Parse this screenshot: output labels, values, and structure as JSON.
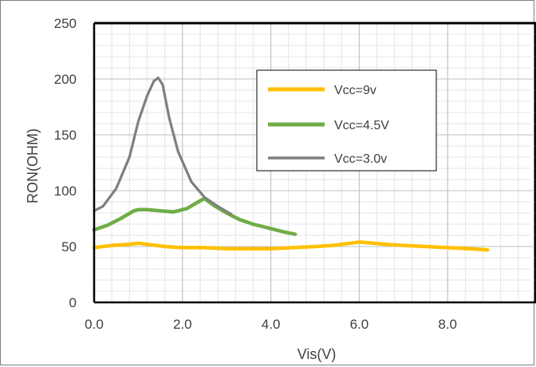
{
  "chart_data": {
    "type": "line",
    "title": "",
    "xlabel": "Vis(V)",
    "ylabel": "RON(OHM)",
    "xlim": [
      0,
      10
    ],
    "ylim": [
      0,
      250
    ],
    "x_ticks": [
      "0.0",
      "2.0",
      "4.0",
      "6.0",
      "8.0"
    ],
    "y_ticks": [
      "0",
      "50",
      "100",
      "150",
      "200",
      "250"
    ],
    "grid": true,
    "legend_position": "top-right",
    "series": [
      {
        "name": "Vcc=9v",
        "color": "#FFC000",
        "x": [
          0.0,
          0.4,
          0.8,
          1.0,
          1.2,
          1.6,
          2.0,
          2.5,
          3.0,
          3.5,
          4.0,
          4.5,
          5.0,
          5.4,
          5.8,
          6.0,
          6.3,
          6.6,
          7.0,
          7.5,
          8.0,
          8.5,
          8.9
        ],
        "y": [
          49,
          51,
          52,
          53,
          52,
          50,
          49,
          49,
          48,
          48,
          48,
          49,
          50,
          51,
          53,
          54,
          53,
          52,
          51,
          50,
          49,
          48,
          47
        ]
      },
      {
        "name": "Vcc=4.5V",
        "color": "#70AD47",
        "x": [
          0.0,
          0.3,
          0.6,
          0.9,
          1.0,
          1.2,
          1.5,
          1.8,
          2.1,
          2.4,
          2.5,
          2.7,
          3.0,
          3.3,
          3.6,
          4.0,
          4.3,
          4.55
        ],
        "y": [
          65,
          69,
          75,
          82,
          83,
          83,
          82,
          81,
          84,
          91,
          93,
          87,
          80,
          74,
          70,
          66,
          63,
          61
        ]
      },
      {
        "name": "Vcc=3.0v",
        "color": "#7F7F7F",
        "x": [
          0.0,
          0.2,
          0.5,
          0.8,
          1.0,
          1.2,
          1.35,
          1.45,
          1.55,
          1.7,
          1.9,
          2.2,
          2.5,
          2.8,
          3.1
        ],
        "y": [
          82,
          86,
          102,
          130,
          162,
          185,
          198,
          201,
          195,
          165,
          135,
          108,
          94,
          86,
          79
        ]
      }
    ]
  }
}
